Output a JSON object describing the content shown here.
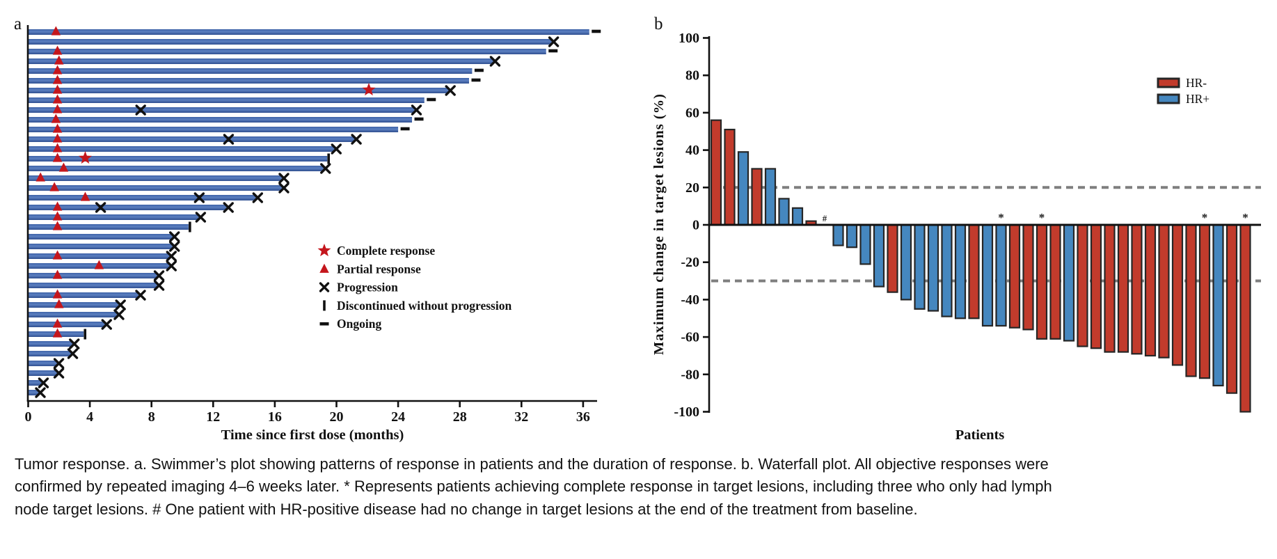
{
  "caption": "Tumor response. a. Swimmer’s plot showing patterns of response in patients and the duration of response. b. Waterfall plot. All objective responses were confirmed by repeated imaging 4–6 weeks later. * Represents patients achieving complete response in target lesions, including three who only had lymph node target lesions. # One patient with HR-positive disease had no change in target lesions at the end of the treatment from baseline.",
  "chart_data": [
    {
      "id": "swimmer_plot",
      "type": "bar",
      "orientation": "horizontal",
      "title": "a",
      "xlabel": "Time since first dose (months)",
      "xticks": [
        0,
        4,
        8,
        12,
        16,
        20,
        24,
        28,
        32,
        36
      ],
      "xlim": [
        0,
        37.5
      ],
      "grid": false,
      "bar_color": "#3A5DA9",
      "marker_color": "#C4161C",
      "legend_position": "lower-right-inside",
      "legend": [
        {
          "marker": "star",
          "label": "Complete response"
        },
        {
          "marker": "triangle",
          "label": "Partial response"
        },
        {
          "marker": "x",
          "label": "Progression"
        },
        {
          "marker": "vbar",
          "label": "Discontinued without progression"
        },
        {
          "marker": "dash",
          "label": "Ongoing"
        }
      ],
      "patients": [
        {
          "duration": 36.4,
          "pr": 1.8,
          "end": "ongoing"
        },
        {
          "duration": 34.0,
          "end": "progression"
        },
        {
          "duration": 33.6,
          "pr": 1.9,
          "end": "ongoing"
        },
        {
          "duration": 30.2,
          "pr": 2.0,
          "end": "progression"
        },
        {
          "duration": 28.8,
          "pr": 1.9,
          "end": "ongoing"
        },
        {
          "duration": 28.6,
          "pr": 1.9,
          "end": "ongoing"
        },
        {
          "duration": 27.3,
          "pr": 1.9,
          "cr": 22.1,
          "end": "progression"
        },
        {
          "duration": 25.7,
          "pr": 1.9,
          "end": "ongoing"
        },
        {
          "duration": 25.1,
          "pr": 1.9,
          "mid_progression": [
            7.3
          ],
          "end": "progression"
        },
        {
          "duration": 24.9,
          "pr": 1.8,
          "end": "ongoing"
        },
        {
          "duration": 24.0,
          "pr": 1.9,
          "end": "ongoing"
        },
        {
          "duration": 21.2,
          "pr": 1.9,
          "mid_progression": [
            13.0
          ],
          "end": "progression"
        },
        {
          "duration": 19.9,
          "pr": 1.9,
          "end": "progression"
        },
        {
          "duration": 19.4,
          "pr": 1.9,
          "cr": 3.7,
          "end": "discontinued"
        },
        {
          "duration": 19.2,
          "pr": 2.3,
          "end": "progression"
        },
        {
          "duration": 16.5,
          "pr": 0.8,
          "end": "progression"
        },
        {
          "duration": 16.5,
          "pr": 1.7,
          "end": "progression"
        },
        {
          "duration": 14.8,
          "pr": 3.7,
          "mid_progression": [
            11.1
          ],
          "end": "progression"
        },
        {
          "duration": 12.9,
          "pr": 1.9,
          "mid_progression": [
            4.7
          ],
          "end": "progression"
        },
        {
          "duration": 11.1,
          "pr": 1.9,
          "end": "progression"
        },
        {
          "duration": 10.4,
          "pr": 1.9,
          "end": "discontinued"
        },
        {
          "duration": 9.4,
          "end": "progression"
        },
        {
          "duration": 9.4,
          "end": "progression"
        },
        {
          "duration": 9.2,
          "pr": 1.9,
          "end": "progression"
        },
        {
          "duration": 9.2,
          "pr": 4.6,
          "end": "progression"
        },
        {
          "duration": 8.4,
          "pr": 1.9,
          "end": "progression"
        },
        {
          "duration": 8.4,
          "end": "progression"
        },
        {
          "duration": 7.2,
          "pr": 1.9,
          "end": "progression"
        },
        {
          "duration": 5.9,
          "pr": 2.0,
          "end": "progression"
        },
        {
          "duration": 5.8,
          "end": "progression"
        },
        {
          "duration": 5.0,
          "pr": 1.9,
          "end": "progression"
        },
        {
          "duration": 3.6,
          "pr": 1.9,
          "end": "discontinued"
        },
        {
          "duration": 2.9,
          "end": "progression"
        },
        {
          "duration": 2.8,
          "end": "progression"
        },
        {
          "duration": 1.9,
          "end": "progression"
        },
        {
          "duration": 1.9,
          "end": "progression"
        },
        {
          "duration": 0.9,
          "end": "progression"
        },
        {
          "duration": 0.7,
          "end": "progression"
        }
      ]
    },
    {
      "id": "waterfall_plot",
      "type": "bar",
      "title": "b",
      "xlabel": "Patients",
      "ylabel": "Maximum change in target lesions (%)",
      "ylim": [
        -100,
        100
      ],
      "yticks": [
        100,
        80,
        60,
        40,
        20,
        0,
        -20,
        -40,
        -60,
        -80,
        -100
      ],
      "reference_lines": [
        20,
        -30
      ],
      "reference_line_color": "#7F7F7F",
      "outline_color": "#262626",
      "legend_position": "upper-right-inside",
      "legend": [
        {
          "label": "HR-",
          "color": "#C23B2C"
        },
        {
          "label": "HR+",
          "color": "#4587BF"
        }
      ],
      "bars": [
        {
          "value": 56,
          "group": "HR-"
        },
        {
          "value": 51,
          "group": "HR-"
        },
        {
          "value": 39,
          "group": "HR+"
        },
        {
          "value": 30,
          "group": "HR-"
        },
        {
          "value": 30,
          "group": "HR+"
        },
        {
          "value": 14,
          "group": "HR+"
        },
        {
          "value": 9,
          "group": "HR+"
        },
        {
          "value": 2,
          "group": "HR-"
        },
        {
          "value": 0,
          "group": "HR+",
          "note": "#"
        },
        {
          "value": -11,
          "group": "HR+"
        },
        {
          "value": -12,
          "group": "HR+"
        },
        {
          "value": -21,
          "group": "HR+"
        },
        {
          "value": -33,
          "group": "HR+"
        },
        {
          "value": -36,
          "group": "HR-"
        },
        {
          "value": -40,
          "group": "HR+"
        },
        {
          "value": -45,
          "group": "HR+"
        },
        {
          "value": -46,
          "group": "HR+"
        },
        {
          "value": -49,
          "group": "HR+"
        },
        {
          "value": -50,
          "group": "HR+"
        },
        {
          "value": -50,
          "group": "HR-"
        },
        {
          "value": -54,
          "group": "HR+"
        },
        {
          "value": -54,
          "group": "HR+",
          "note": "*"
        },
        {
          "value": -55,
          "group": "HR-"
        },
        {
          "value": -56,
          "group": "HR-"
        },
        {
          "value": -61,
          "group": "HR-",
          "note": "*"
        },
        {
          "value": -61,
          "group": "HR-"
        },
        {
          "value": -62,
          "group": "HR+"
        },
        {
          "value": -65,
          "group": "HR-"
        },
        {
          "value": -66,
          "group": "HR-"
        },
        {
          "value": -68,
          "group": "HR-"
        },
        {
          "value": -68,
          "group": "HR-"
        },
        {
          "value": -69,
          "group": "HR-"
        },
        {
          "value": -70,
          "group": "HR-"
        },
        {
          "value": -71,
          "group": "HR-"
        },
        {
          "value": -75,
          "group": "HR-"
        },
        {
          "value": -81,
          "group": "HR-"
        },
        {
          "value": -82,
          "group": "HR-",
          "note": "*"
        },
        {
          "value": -86,
          "group": "HR+"
        },
        {
          "value": -90,
          "group": "HR-"
        },
        {
          "value": -100,
          "group": "HR-",
          "note": "*"
        }
      ]
    }
  ]
}
